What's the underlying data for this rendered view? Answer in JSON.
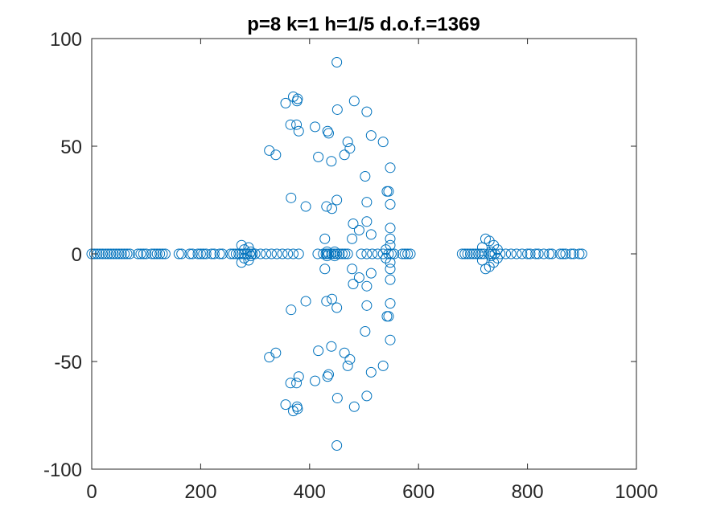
{
  "chart_data": {
    "type": "scatter",
    "title": "p=8 k=1 h=1/5 d.o.f.=1369",
    "xlabel": "",
    "ylabel": "",
    "xlim": [
      0,
      1000
    ],
    "ylim": [
      -100,
      100
    ],
    "x_ticks": [
      0,
      200,
      400,
      600,
      800,
      1000
    ],
    "y_ticks": [
      100,
      50,
      0,
      -50,
      -100
    ],
    "x_tick_labels": [
      "0",
      "200",
      "400",
      "600",
      "800",
      "1000"
    ],
    "y_tick_labels": [
      "100",
      "50",
      "0",
      "-50",
      "-100"
    ],
    "grid": false,
    "marker": "circle-open",
    "colors": {
      "marker": "#0072BD",
      "axes": "#262626",
      "background": "#ffffff"
    },
    "series": [
      {
        "points": [
          [
            0,
            0
          ],
          [
            5,
            0
          ],
          [
            10,
            0
          ],
          [
            15,
            0
          ],
          [
            20,
            0
          ],
          [
            25,
            0
          ],
          [
            30,
            0
          ],
          [
            35,
            0
          ],
          [
            40,
            0
          ],
          [
            45,
            0
          ],
          [
            50,
            0
          ],
          [
            55,
            0
          ],
          [
            60,
            0
          ],
          [
            65,
            0
          ],
          [
            70,
            0
          ],
          [
            85,
            0
          ],
          [
            90,
            0
          ],
          [
            95,
            0
          ],
          [
            100,
            0
          ],
          [
            110,
            0
          ],
          [
            115,
            0
          ],
          [
            120,
            0
          ],
          [
            125,
            0
          ],
          [
            130,
            0
          ],
          [
            135,
            0
          ],
          [
            160,
            0
          ],
          [
            165,
            0
          ],
          [
            180,
            0
          ],
          [
            185,
            0
          ],
          [
            195,
            0
          ],
          [
            200,
            0
          ],
          [
            205,
            0
          ],
          [
            210,
            0
          ],
          [
            220,
            0
          ],
          [
            225,
            0
          ],
          [
            235,
            0
          ],
          [
            240,
            0
          ],
          [
            255,
            0
          ],
          [
            260,
            0
          ],
          [
            265,
            0
          ],
          [
            270,
            0
          ],
          [
            275,
            0
          ],
          [
            280,
            0
          ],
          [
            285,
            0
          ],
          [
            290,
            0
          ],
          [
            295,
            0
          ],
          [
            300,
            0
          ],
          [
            275,
            4
          ],
          [
            275,
            -4
          ],
          [
            280,
            2
          ],
          [
            280,
            -2
          ],
          [
            288,
            3
          ],
          [
            288,
            -3
          ],
          [
            292,
            1
          ],
          [
            292,
            -1
          ],
          [
            310,
            0
          ],
          [
            320,
            0
          ],
          [
            330,
            0
          ],
          [
            340,
            0
          ],
          [
            350,
            0
          ],
          [
            360,
            0
          ],
          [
            370,
            0
          ],
          [
            380,
            0
          ],
          [
            415,
            0
          ],
          [
            425,
            0
          ],
          [
            430,
            0
          ],
          [
            432,
            0
          ],
          [
            435,
            0
          ],
          [
            440,
            0
          ],
          [
            445,
            0
          ],
          [
            450,
            0
          ],
          [
            455,
            0
          ],
          [
            460,
            0
          ],
          [
            465,
            0
          ],
          [
            470,
            0
          ],
          [
            495,
            0
          ],
          [
            505,
            0
          ],
          [
            515,
            0
          ],
          [
            525,
            0
          ],
          [
            535,
            0
          ],
          [
            545,
            0
          ],
          [
            550,
            0
          ],
          [
            555,
            0
          ],
          [
            570,
            0
          ],
          [
            575,
            0
          ],
          [
            580,
            0
          ],
          [
            585,
            0
          ],
          [
            450,
            89
          ],
          [
            450,
            -89
          ],
          [
            370,
            73
          ],
          [
            370,
            -73
          ],
          [
            377,
            71
          ],
          [
            377,
            -71
          ],
          [
            378,
            72
          ],
          [
            378,
            -72
          ],
          [
            482,
            71
          ],
          [
            482,
            -71
          ],
          [
            356,
            70
          ],
          [
            356,
            -70
          ],
          [
            505,
            66
          ],
          [
            505,
            -66
          ],
          [
            451,
            67
          ],
          [
            451,
            -67
          ],
          [
            365,
            60
          ],
          [
            365,
            -60
          ],
          [
            376,
            60
          ],
          [
            376,
            -60
          ],
          [
            410,
            59
          ],
          [
            410,
            -59
          ],
          [
            435,
            56
          ],
          [
            435,
            -56
          ],
          [
            380,
            57
          ],
          [
            380,
            -57
          ],
          [
            433,
            57
          ],
          [
            433,
            -57
          ],
          [
            513,
            55
          ],
          [
            513,
            -55
          ],
          [
            470,
            52
          ],
          [
            470,
            -52
          ],
          [
            535,
            52
          ],
          [
            535,
            -52
          ],
          [
            474,
            49
          ],
          [
            474,
            -49
          ],
          [
            326,
            48
          ],
          [
            326,
            -48
          ],
          [
            338,
            46
          ],
          [
            338,
            -46
          ],
          [
            416,
            45
          ],
          [
            416,
            -45
          ],
          [
            464,
            46
          ],
          [
            464,
            -46
          ],
          [
            440,
            43
          ],
          [
            440,
            -43
          ],
          [
            548,
            40
          ],
          [
            548,
            -40
          ],
          [
            502,
            36
          ],
          [
            502,
            -36
          ],
          [
            542,
            29
          ],
          [
            542,
            -29
          ],
          [
            545,
            29
          ],
          [
            545,
            -29
          ],
          [
            366,
            26
          ],
          [
            366,
            -26
          ],
          [
            450,
            25
          ],
          [
            450,
            -25
          ],
          [
            505,
            24
          ],
          [
            505,
            -24
          ],
          [
            548,
            23
          ],
          [
            548,
            -23
          ],
          [
            393,
            22
          ],
          [
            393,
            -22
          ],
          [
            431,
            22
          ],
          [
            431,
            -22
          ],
          [
            441,
            21
          ],
          [
            441,
            -21
          ],
          [
            480,
            14
          ],
          [
            480,
            -14
          ],
          [
            505,
            15
          ],
          [
            505,
            -15
          ],
          [
            548,
            12
          ],
          [
            548,
            -12
          ],
          [
            491,
            11
          ],
          [
            491,
            -11
          ],
          [
            513,
            9
          ],
          [
            513,
            -9
          ],
          [
            428,
            7
          ],
          [
            428,
            -7
          ],
          [
            478,
            7
          ],
          [
            478,
            -7
          ],
          [
            548,
            7
          ],
          [
            548,
            -7
          ],
          [
            548,
            4
          ],
          [
            548,
            -4
          ],
          [
            540,
            2
          ],
          [
            540,
            -2
          ],
          [
            432,
            1
          ],
          [
            432,
            -1
          ],
          [
            446,
            1
          ],
          [
            446,
            -1
          ],
          [
            680,
            0
          ],
          [
            685,
            0
          ],
          [
            690,
            0
          ],
          [
            695,
            0
          ],
          [
            700,
            0
          ],
          [
            705,
            0
          ],
          [
            710,
            0
          ],
          [
            715,
            0
          ],
          [
            720,
            0
          ],
          [
            730,
            0
          ],
          [
            735,
            0
          ],
          [
            740,
            0
          ],
          [
            750,
            0
          ],
          [
            760,
            0
          ],
          [
            770,
            0
          ],
          [
            780,
            0
          ],
          [
            790,
            0
          ],
          [
            800,
            0
          ],
          [
            805,
            0
          ],
          [
            815,
            0
          ],
          [
            820,
            0
          ],
          [
            830,
            0
          ],
          [
            840,
            0
          ],
          [
            845,
            0
          ],
          [
            860,
            0
          ],
          [
            865,
            0
          ],
          [
            870,
            0
          ],
          [
            880,
            0
          ],
          [
            885,
            0
          ],
          [
            895,
            0
          ],
          [
            900,
            0
          ],
          [
            723,
            7
          ],
          [
            723,
            -7
          ],
          [
            730,
            6
          ],
          [
            730,
            -6
          ],
          [
            738,
            4
          ],
          [
            738,
            -4
          ],
          [
            745,
            2
          ],
          [
            745,
            -2
          ],
          [
            717,
            3
          ],
          [
            717,
            -3
          ],
          [
            733,
            1
          ],
          [
            733,
            -1
          ]
        ]
      }
    ]
  }
}
